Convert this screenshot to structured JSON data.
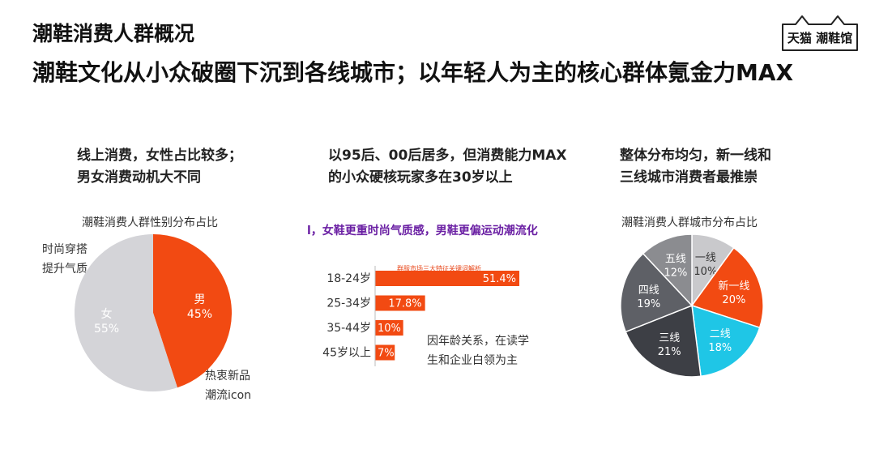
{
  "header": {
    "section_title": "潮鞋消费人群概况",
    "headline": "潮鞋文化从小众破圈下沉到各线城市；以年轻人为主的核心群体氪金力MAX",
    "logo_text": "天猫 潮鞋馆"
  },
  "left": {
    "heading_line1": "线上消费，女性占比较多；",
    "heading_line2": "男女消费动机大不同",
    "note_female_line1": "时尚穿搭",
    "note_female_line2": "提升气质",
    "note_male_line1": "热衷新品",
    "note_male_line2": "潮流icon"
  },
  "middle": {
    "heading_line1": "以95后、00后居多，但消费能力MAX",
    "heading_line2": "的小众硬核玩家多在30岁以上",
    "purple_note": "l，女鞋更重时尚气质感，男鞋更偏运动潮流化",
    "note_line1": "因年龄关系，在读学",
    "note_line2": "生和企业白领为主"
  },
  "right": {
    "heading_line1": "整体分布均匀，新一线和",
    "heading_line2": "三线城市消费者最推崇"
  },
  "chart_data": [
    {
      "type": "pie",
      "title": "潮鞋消费人群性别分布占比",
      "labels": [
        "男",
        "女"
      ],
      "values": [
        45,
        55
      ],
      "value_labels": [
        "45%",
        "55%"
      ],
      "colors": [
        "#f24a12",
        "#d4d4d8"
      ]
    },
    {
      "type": "bar",
      "orientation": "horizontal",
      "title": "群服市场三大特征关键词解析",
      "categories": [
        "18-24岁",
        "25-34岁",
        "35-44岁",
        "45岁以上"
      ],
      "values": [
        51.4,
        17.8,
        10,
        7
      ],
      "value_labels": [
        "51.4%",
        "17.8%",
        "10%",
        "7%"
      ],
      "color": "#f24a12"
    },
    {
      "type": "pie",
      "title": "潮鞋消费人群城市分布占比",
      "labels": [
        "一线",
        "新一线",
        "二线",
        "三线",
        "四线",
        "五线"
      ],
      "values": [
        10,
        20,
        18,
        21,
        19,
        12
      ],
      "value_labels": [
        "10%",
        "20%",
        "18%",
        "21%",
        "19%",
        "12%"
      ],
      "colors": [
        "#c9c9cc",
        "#f24a12",
        "#1fc6e6",
        "#3d3f45",
        "#5e6066",
        "#8b8c90"
      ]
    }
  ]
}
